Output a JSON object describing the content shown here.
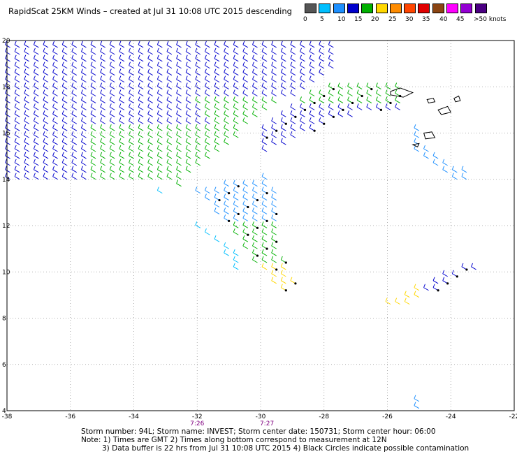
{
  "title": "RapidScat 25KM Winds – created at Jul 31 10:08 UTC 2015 descending",
  "colorbar": {
    "colors": [
      "#555555",
      "#00bfff",
      "#1e90ff",
      "#0000cd",
      "#00b000",
      "#ffd700",
      "#ff8c00",
      "#ff4500",
      "#e00000",
      "#8b4513",
      "#ff00ff",
      "#9400d3",
      "#4b0082"
    ],
    "labels": [
      "0",
      "5",
      "10",
      "15",
      "20",
      "25",
      "30",
      "35",
      "40",
      "45",
      ">50 knots"
    ]
  },
  "chart_data": {
    "type": "scatter",
    "xlim": [
      -38,
      -22
    ],
    "ylim": [
      4,
      20
    ],
    "xticks": [
      "-38",
      "-36",
      "-34",
      "-32",
      "-30",
      "-28",
      "-26",
      "-24",
      "-22"
    ],
    "yticks": [
      "4",
      "6",
      "8",
      "10",
      "12",
      "14",
      "16",
      "18",
      "20"
    ],
    "grid": true,
    "time_labels": [
      {
        "lon": -32.0,
        "text": "7:26"
      },
      {
        "lon": -29.8,
        "text": "7:27"
      }
    ],
    "swaths": [
      {
        "name": "main",
        "polygon": [
          [
            -38,
            20
          ],
          [
            -27.5,
            20
          ],
          [
            -27.5,
            18.8
          ],
          [
            -29.9,
            16.7
          ],
          [
            -32.5,
            13.7
          ],
          [
            -37.9,
            13.8
          ],
          [
            -38,
            15
          ]
        ]
      },
      {
        "name": "middle",
        "polygon": [
          [
            -30,
            14
          ],
          [
            -29.6,
            14.5
          ],
          [
            -29.1,
            9.7
          ],
          [
            -28.8,
            9.4
          ],
          [
            -29.3,
            9
          ],
          [
            -31.5,
            12.8
          ],
          [
            -32,
            13.5
          ]
        ]
      },
      {
        "name": "east",
        "polygon": [
          [
            -30,
            16
          ],
          [
            -28,
            17.9
          ],
          [
            -25.6,
            18.0
          ],
          [
            -25.4,
            17.0
          ],
          [
            -27.5,
            16.6
          ],
          [
            -30.1,
            14.8
          ]
        ]
      },
      {
        "name": "lower_left",
        "polygon": [
          [
            -33.2,
            13.5
          ],
          [
            -31.5,
            11.4
          ],
          [
            -30.6,
            9.8
          ],
          [
            -30.5,
            10.5
          ],
          [
            -32.5,
            12.5
          ],
          [
            -33,
            13.3
          ]
        ]
      },
      {
        "name": "se",
        "polygon": [
          [
            -25.8,
            8.2
          ],
          [
            -23.0,
            10.2
          ],
          [
            -23.2,
            10.4
          ],
          [
            -24.5,
            9.6
          ],
          [
            -26.0,
            8.6
          ]
        ]
      },
      {
        "name": "ne_sparse",
        "polygon": [
          [
            -25.2,
            16.6
          ],
          [
            -24.5,
            15.0
          ],
          [
            -23.5,
            14.4
          ],
          [
            -23.2,
            13.5
          ],
          [
            -24.2,
            14.2
          ],
          [
            -25.3,
            15.4
          ]
        ]
      },
      {
        "name": "bottom",
        "polygon": [
          [
            -25.3,
            4.3
          ],
          [
            -24.8,
            4.6
          ],
          [
            -24.9,
            4.0
          ],
          [
            -25.3,
            4.0
          ]
        ]
      }
    ],
    "land": [
      {
        "name": "island-1",
        "points": [
          [
            -25.9,
            17.8
          ],
          [
            -25.6,
            17.95
          ],
          [
            -25.2,
            17.75
          ],
          [
            -25.5,
            17.55
          ],
          [
            -25.9,
            17.65
          ]
        ]
      },
      {
        "name": "island-2",
        "points": [
          [
            -24.4,
            17.0
          ],
          [
            -24.1,
            17.15
          ],
          [
            -24.0,
            16.9
          ],
          [
            -24.3,
            16.8
          ]
        ]
      },
      {
        "name": "island-3",
        "points": [
          [
            -24.85,
            16.0
          ],
          [
            -24.6,
            16.05
          ],
          [
            -24.5,
            15.8
          ],
          [
            -24.8,
            15.75
          ]
        ]
      },
      {
        "name": "island-4",
        "points": [
          [
            -25.2,
            15.5
          ],
          [
            -25.0,
            15.55
          ],
          [
            -25.05,
            15.4
          ]
        ]
      },
      {
        "name": "island-5",
        "points": [
          [
            -23.9,
            17.5
          ],
          [
            -23.75,
            17.6
          ],
          [
            -23.7,
            17.4
          ],
          [
            -23.85,
            17.35
          ]
        ]
      },
      {
        "name": "island-6",
        "points": [
          [
            -24.75,
            17.45
          ],
          [
            -24.55,
            17.5
          ],
          [
            -24.5,
            17.35
          ],
          [
            -24.7,
            17.3
          ]
        ]
      }
    ]
  },
  "footer": {
    "line1": "Storm number: 94L;  Storm name: INVEST;  Storm center date: 150731;  Storm center hour: 06:00",
    "line2": "Note: 1) Times are GMT  2) Times along bottom correspond to measurement at 12N",
    "line3": "3) Data buffer is 22 hrs from Jul 31 10:08 UTC 2015  4) Black Circles indicate possible contamination"
  }
}
